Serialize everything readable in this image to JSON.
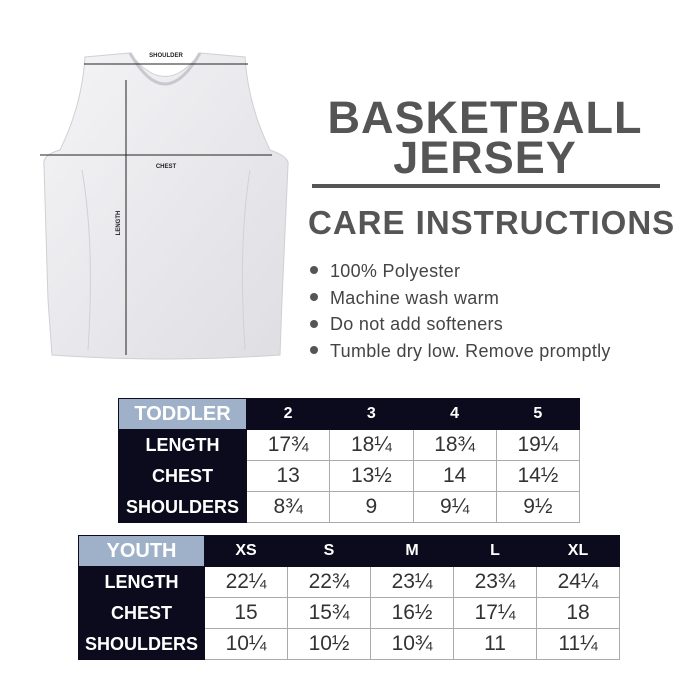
{
  "diagram": {
    "shoulder_label": "SHOULDER",
    "chest_label": "CHEST",
    "length_label": "LENGTH"
  },
  "title": {
    "line1": "BASKETBALL",
    "line2": "JERSEY"
  },
  "care": {
    "heading": "CARE INSTRUCTIONS",
    "items": [
      "100% Polyester",
      "Machine wash warm",
      "Do not add softeners",
      "Tumble dry low. Remove promptly"
    ]
  },
  "colors": {
    "header_dark": "#0c0b1e",
    "corner": "#9fb1c8",
    "text_gray": "#555555"
  },
  "toddler": {
    "label": "TODDLER",
    "sizes": [
      "2",
      "3",
      "4",
      "5"
    ],
    "rows": [
      {
        "label": "LENGTH",
        "values": [
          "17¾",
          "18¼",
          "18¾",
          "19¼"
        ]
      },
      {
        "label": "CHEST",
        "values": [
          "13",
          "13½",
          "14",
          "14½"
        ]
      },
      {
        "label": "SHOULDERS",
        "values": [
          "8¾",
          "9",
          "9¼",
          "9½"
        ]
      }
    ]
  },
  "youth": {
    "label": "YOUTH",
    "sizes": [
      "XS",
      "S",
      "M",
      "L",
      "XL"
    ],
    "rows": [
      {
        "label": "LENGTH",
        "values": [
          "22¼",
          "22¾",
          "23¼",
          "23¾",
          "24¼"
        ]
      },
      {
        "label": "CHEST",
        "values": [
          "15",
          "15¾",
          "16½",
          "17¼",
          "18"
        ]
      },
      {
        "label": "SHOULDERS",
        "values": [
          "10¼",
          "10½",
          "10¾",
          "11",
          "11¼"
        ]
      }
    ]
  }
}
